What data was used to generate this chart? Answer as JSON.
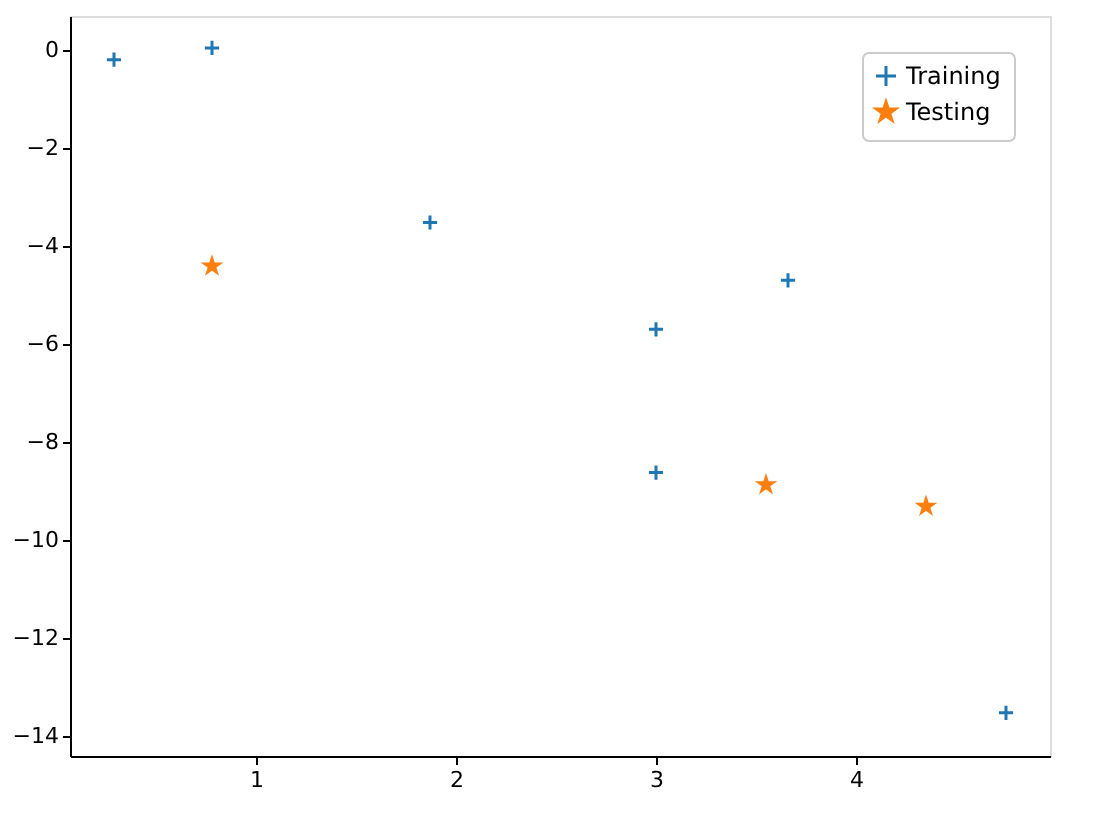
{
  "chart_data": {
    "type": "scatter",
    "series": [
      {
        "name": "Training",
        "color": "#1f77b4",
        "marker": "cross",
        "x": [
          0.29,
          0.78,
          1.87,
          3.0,
          3.66,
          3.0,
          4.75
        ],
        "values": [
          -0.2,
          0.04,
          -3.52,
          -5.7,
          -4.7,
          -8.62,
          -13.52
        ]
      },
      {
        "name": "Testing",
        "color": "#ff7f0e",
        "marker": "star",
        "x": [
          0.78,
          3.55,
          4.35
        ],
        "values": [
          -4.41,
          -8.87,
          -9.31
        ]
      }
    ],
    "xlim": [
      0.07,
      4.97
    ],
    "xticks": [
      1,
      2,
      3,
      4
    ],
    "ylim": [
      -14.4,
      0.69
    ],
    "yticks": [
      0,
      -2,
      -4,
      -6,
      -8,
      -10,
      -12,
      -14
    ],
    "grid": false,
    "legend": "top right"
  }
}
